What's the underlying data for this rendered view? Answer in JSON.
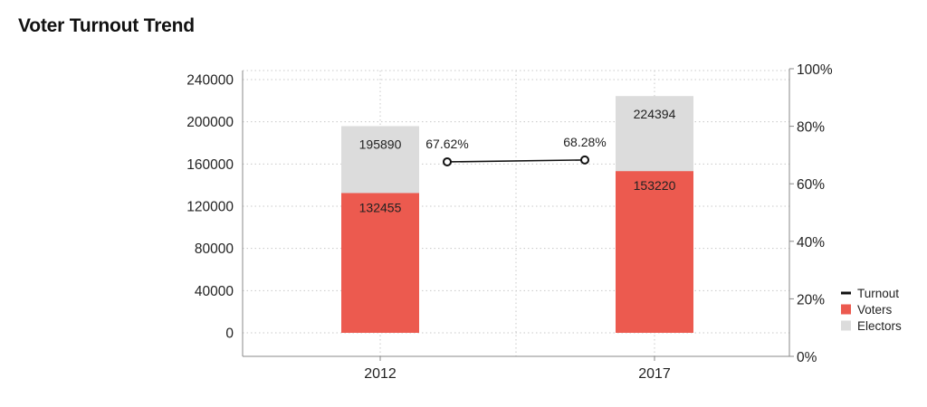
{
  "title": "Voter Turnout Trend",
  "colors": {
    "voters": "#ec5a4f",
    "electors": "#dcdcdc",
    "turnout": "#111111"
  },
  "chart_data": {
    "type": "bar",
    "title": "Voter Turnout Trend",
    "categories": [
      "2012",
      "2017"
    ],
    "series": [
      {
        "name": "Voters",
        "kind": "bar",
        "values": [
          132455,
          153220
        ]
      },
      {
        "name": "Electors",
        "kind": "bar",
        "values": [
          195890,
          224394
        ]
      },
      {
        "name": "Turnout",
        "kind": "line",
        "axis": "right",
        "values": [
          67.62,
          68.28
        ],
        "labels": [
          "67.62%",
          "68.28%"
        ]
      }
    ],
    "ylim": [
      0,
      240000
    ],
    "yticks": [
      0,
      40000,
      80000,
      120000,
      160000,
      200000,
      240000
    ],
    "y2lim": [
      0,
      100
    ],
    "y2ticks": [
      "0%",
      "20%",
      "40%",
      "60%",
      "80%",
      "100%"
    ],
    "grid": true,
    "legend": {
      "placement": "right",
      "entries": [
        "Turnout",
        "Voters",
        "Electors"
      ]
    }
  }
}
